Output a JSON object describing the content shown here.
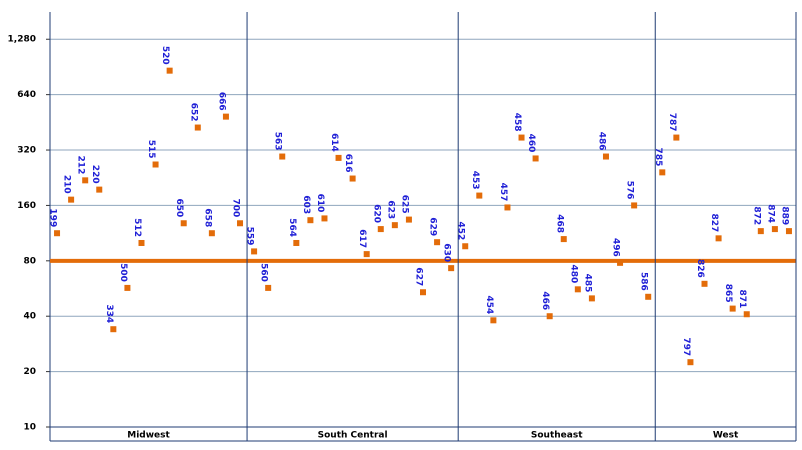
{
  "chart_data": {
    "type": "scatter",
    "log_scale": true,
    "grid": true,
    "marker_color": "#e36c09",
    "label_color": "#1f1fd6",
    "reference_line": 80,
    "ylim": [
      10,
      1800
    ],
    "yticks": [
      10,
      20,
      40,
      80,
      160,
      320,
      640,
      {
        "value": 1280,
        "label": "1,280"
      }
    ],
    "groups": [
      {
        "label": "Midwest",
        "categories": [
          "199",
          "210",
          "212",
          "220",
          "334",
          "500",
          "512",
          "515",
          "520",
          "650",
          "652",
          "658",
          "666",
          "700"
        ],
        "values": [
          113,
          172,
          219,
          195,
          34,
          57,
          100,
          267,
          864,
          128,
          424,
          113,
          486,
          128
        ]
      },
      {
        "label": "South Central",
        "categories": [
          "559",
          "560",
          "563",
          "564",
          "603",
          "610",
          "614",
          "616",
          "617",
          "620",
          "623",
          "625",
          "627",
          "629",
          "630"
        ],
        "values": [
          90,
          57,
          295,
          100,
          133,
          136,
          290,
          224,
          87,
          119,
          125,
          134,
          54,
          101,
          73
        ]
      },
      {
        "label": "Southeast",
        "categories": [
          "452",
          "453",
          "454",
          "457",
          "458",
          "460",
          "466",
          "468",
          "480",
          "485",
          "486",
          "496",
          "576",
          "586"
        ],
        "values": [
          96,
          181,
          38,
          156,
          374,
          288,
          40,
          105,
          56,
          50,
          295,
          78,
          160,
          51
        ]
      },
      {
        "label": "West",
        "categories": [
          "785",
          "787",
          "797",
          "826",
          "827",
          "865",
          "871",
          "872",
          "874",
          "889"
        ],
        "values": [
          242,
          374,
          22.5,
          60,
          106,
          44,
          41,
          116,
          119,
          116
        ]
      }
    ]
  }
}
